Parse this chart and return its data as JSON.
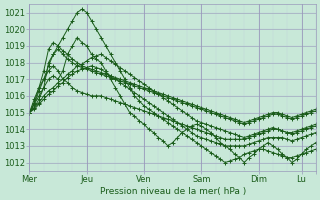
{
  "bg_color": "#c8e8d8",
  "grid_color_major": "#9999bb",
  "grid_color_minor": "#c0d0d8",
  "line_color": "#1a5c1a",
  "marker_color": "#1a5c1a",
  "xlabel_text": "Pression niveau de la mer( hPa )",
  "xtick_positions": [
    0,
    24,
    48,
    72,
    96,
    114,
    120
  ],
  "xtick_labels": [
    "Mer",
    "Jeu",
    "Ven",
    "Sam",
    "Dim",
    "Lu",
    ""
  ],
  "ytick_min": 1012,
  "ytick_max": 1021,
  "xmin": 0,
  "xmax": 120,
  "ymin": 1011.5,
  "ymax": 1021.5,
  "series": [
    [
      1015,
      1015.5,
      1016,
      1016.5,
      1017,
      1017.2,
      1017,
      1017.5,
      1018.5,
      1019,
      1019.5,
      1019.2,
      1019,
      1018.5,
      1018.2,
      1018,
      1017.5,
      1017,
      1016.5,
      1016,
      1015.5,
      1015,
      1014.8,
      1014.5,
      1014.3,
      1014,
      1013.8,
      1013.5,
      1013.3,
      1013,
      1013.2,
      1013.5,
      1013.8,
      1014,
      1014.2,
      1014.3,
      1014.2,
      1014,
      1013.8,
      1013.5,
      1013.2,
      1013.0,
      1012.8,
      1012.5,
      1012.3,
      1012,
      1012.3,
      1012.5,
      1012.8,
      1013,
      1013.2,
      1013.0,
      1012.8,
      1012.5,
      1012.3,
      1012.0,
      1012.2,
      1012.5,
      1012.8,
      1013,
      1013.2
    ],
    [
      1015,
      1015.3,
      1015.6,
      1016,
      1016.3,
      1016.5,
      1016.8,
      1017,
      1017.3,
      1017.5,
      1017.8,
      1017.9,
      1018.1,
      1018.3,
      1018.4,
      1018.5,
      1018.3,
      1018.1,
      1017.9,
      1017.7,
      1017.5,
      1017.3,
      1017.1,
      1016.9,
      1016.7,
      1016.5,
      1016.3,
      1016.1,
      1015.9,
      1015.7,
      1015.5,
      1015.3,
      1015.1,
      1014.9,
      1014.7,
      1014.5,
      1014.4,
      1014.3,
      1014.2,
      1014.1,
      1014.0,
      1013.9,
      1013.8,
      1013.7,
      1013.6,
      1013.5,
      1013.6,
      1013.7,
      1013.8,
      1013.9,
      1014.0,
      1014.1,
      1014.0,
      1013.9,
      1013.8,
      1013.7,
      1013.8,
      1013.9,
      1014.0,
      1014.1,
      1014.2
    ],
    [
      1015,
      1015.2,
      1015.5,
      1015.8,
      1016.1,
      1016.3,
      1016.6,
      1016.8,
      1017.1,
      1017.3,
      1017.5,
      1017.6,
      1017.7,
      1017.8,
      1017.7,
      1017.6,
      1017.4,
      1017.2,
      1017.0,
      1016.8,
      1016.6,
      1016.4,
      1016.2,
      1016.0,
      1015.8,
      1015.6,
      1015.4,
      1015.2,
      1015.0,
      1014.8,
      1014.6,
      1014.4,
      1014.2,
      1014.0,
      1013.8,
      1013.6,
      1013.5,
      1013.4,
      1013.3,
      1013.2,
      1013.1,
      1013.0,
      1013.0,
      1013.0,
      1013.0,
      1013.0,
      1013.1,
      1013.2,
      1013.3,
      1013.4,
      1013.5,
      1013.5,
      1013.5,
      1013.5,
      1013.4,
      1013.3,
      1013.4,
      1013.5,
      1013.6,
      1013.7,
      1013.8
    ],
    [
      1015,
      1015.8,
      1016.5,
      1017.0,
      1017.5,
      1017.8,
      1017.5,
      1017.0,
      1016.8,
      1016.5,
      1016.3,
      1016.2,
      1016.1,
      1016.0,
      1016.0,
      1016.0,
      1015.9,
      1015.8,
      1015.7,
      1015.6,
      1015.5,
      1015.4,
      1015.3,
      1015.2,
      1015.1,
      1015.0,
      1014.9,
      1014.8,
      1014.7,
      1014.6,
      1014.5,
      1014.4,
      1014.3,
      1014.2,
      1014.1,
      1014.0,
      1013.9,
      1013.8,
      1013.7,
      1013.6,
      1013.5,
      1013.4,
      1013.4,
      1013.4,
      1013.4,
      1013.4,
      1013.5,
      1013.6,
      1013.7,
      1013.8,
      1013.9,
      1014.0,
      1014.0,
      1013.9,
      1013.8,
      1013.8,
      1013.9,
      1014.0,
      1014.1,
      1014.2,
      1014.3
    ],
    [
      1015,
      1015.5,
      1016.3,
      1017.0,
      1017.8,
      1018.5,
      1019.0,
      1019.5,
      1020.0,
      1020.5,
      1021.0,
      1021.2,
      1021.0,
      1020.5,
      1020.0,
      1019.5,
      1019.0,
      1018.5,
      1018.0,
      1017.5,
      1017.0,
      1016.5,
      1016.0,
      1015.7,
      1015.4,
      1015.2,
      1015.0,
      1014.8,
      1014.6,
      1014.4,
      1014.2,
      1014.0,
      1013.8,
      1013.6,
      1013.4,
      1013.2,
      1013.0,
      1012.8,
      1012.6,
      1012.4,
      1012.2,
      1012.0,
      1012.1,
      1012.2,
      1012.3,
      1012.5,
      1012.6,
      1012.7,
      1012.8,
      1012.8,
      1012.7,
      1012.6,
      1012.5,
      1012.4,
      1012.3,
      1012.3,
      1012.4,
      1012.5,
      1012.6,
      1012.7,
      1012.8
    ],
    [
      1015,
      1015.3,
      1015.8,
      1016.5,
      1018.0,
      1018.5,
      1018.8,
      1018.5,
      1018.2,
      1018.0,
      1017.8,
      1017.7,
      1017.6,
      1017.5,
      1017.4,
      1017.3,
      1017.2,
      1017.1,
      1017.0,
      1016.9,
      1016.8,
      1016.7,
      1016.6,
      1016.5,
      1016.4,
      1016.3,
      1016.2,
      1016.1,
      1016.0,
      1015.9,
      1015.8,
      1015.7,
      1015.6,
      1015.5,
      1015.4,
      1015.3,
      1015.2,
      1015.1,
      1015.0,
      1014.9,
      1014.8,
      1014.7,
      1014.6,
      1014.5,
      1014.4,
      1014.3,
      1014.4,
      1014.5,
      1014.6,
      1014.7,
      1014.8,
      1014.9,
      1014.9,
      1014.8,
      1014.7,
      1014.6,
      1014.7,
      1014.8,
      1014.9,
      1015.0,
      1015.1
    ],
    [
      1015,
      1015.6,
      1016.5,
      1017.5,
      1018.8,
      1019.2,
      1019.0,
      1018.7,
      1018.5,
      1018.2,
      1018.0,
      1017.8,
      1017.7,
      1017.6,
      1017.5,
      1017.4,
      1017.3,
      1017.2,
      1017.1,
      1017.0,
      1016.9,
      1016.8,
      1016.7,
      1016.6,
      1016.5,
      1016.4,
      1016.3,
      1016.2,
      1016.1,
      1016.0,
      1015.9,
      1015.8,
      1015.7,
      1015.6,
      1015.5,
      1015.4,
      1015.3,
      1015.2,
      1015.1,
      1015.0,
      1014.9,
      1014.8,
      1014.7,
      1014.6,
      1014.5,
      1014.4,
      1014.5,
      1014.6,
      1014.7,
      1014.8,
      1014.9,
      1015.0,
      1015.0,
      1014.9,
      1014.8,
      1014.7,
      1014.8,
      1014.9,
      1015.0,
      1015.1,
      1015.2
    ]
  ]
}
